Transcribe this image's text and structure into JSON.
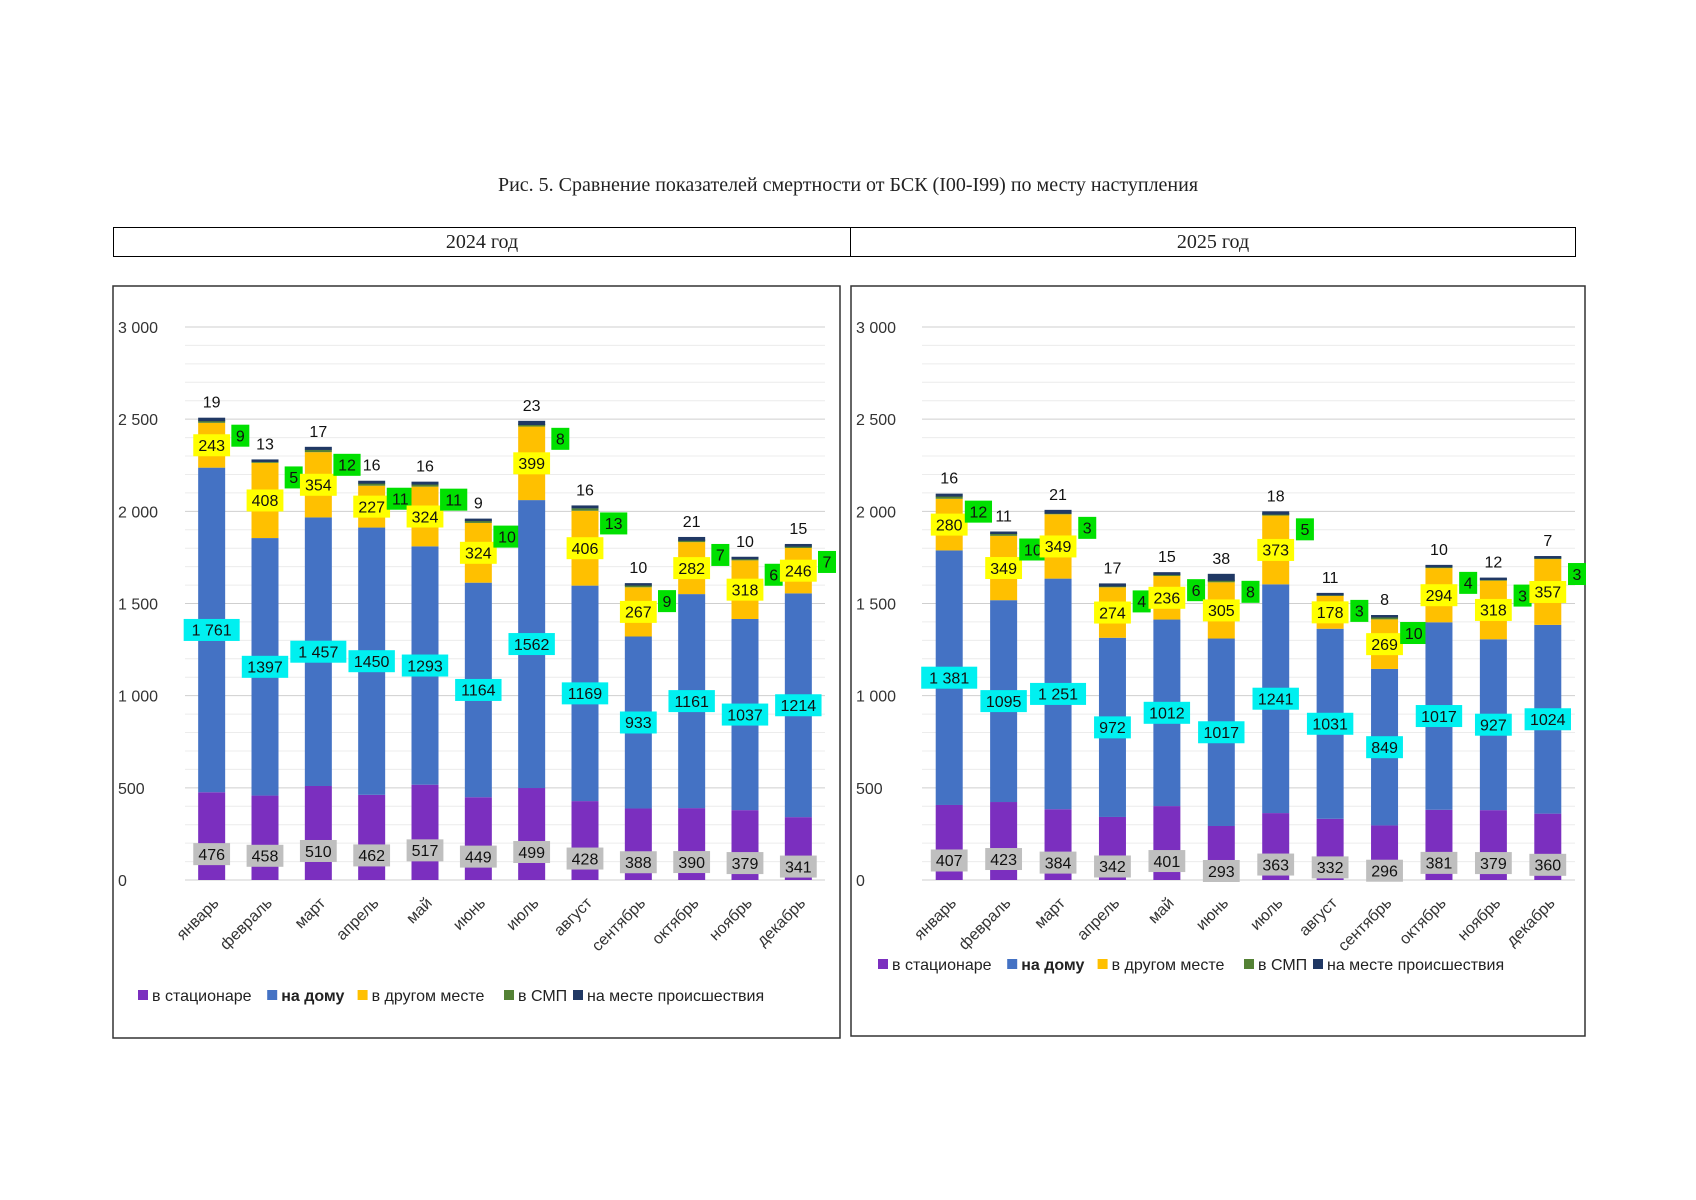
{
  "figure_title": "Рис. 5. Сравнение показателей смертности от БСК (I00-I99) по месту наступления",
  "year_headers": [
    "2024 год",
    "2025 год"
  ],
  "colors": {
    "stationary": "#7B2FBF",
    "home": "#4472C4",
    "other_place": "#FFC000",
    "smp": "#548235",
    "incident_place": "#203864",
    "label_gray": "#BFBFBF",
    "label_cyan": "#00F0F0",
    "label_yellow": "#FFFF00",
    "label_green": "#00E000"
  },
  "chart_data": [
    {
      "type": "bar",
      "stacked": true,
      "year": "2024 год",
      "categories": [
        "январь",
        "февраль",
        "март",
        "апрель",
        "май",
        "июнь",
        "июль",
        "август",
        "сентябрь",
        "октябрь",
        "ноябрь",
        "декабрь"
      ],
      "y_ticks": [
        "0",
        "500",
        "1 000",
        "1 500",
        "2 000",
        "2 500",
        "3 000"
      ],
      "ylim": [
        0,
        3000
      ],
      "grid": true,
      "legend_position": "bottom",
      "series": [
        {
          "name": "в стационаре",
          "key": "stationary",
          "values": [
            476,
            458,
            510,
            462,
            517,
            449,
            499,
            428,
            388,
            390,
            379,
            341
          ],
          "labels": [
            "476",
            "458",
            "510",
            "462",
            "517",
            "449",
            "499",
            "428",
            "388",
            "390",
            "379",
            "341"
          ]
        },
        {
          "name": "на дому",
          "key": "home",
          "bold": true,
          "values": [
            1761,
            1397,
            1457,
            1450,
            1293,
            1164,
            1562,
            1169,
            933,
            1161,
            1037,
            1214
          ],
          "labels": [
            "1 761",
            "1397",
            "1 457",
            "1450",
            "1293",
            "1164",
            "1562",
            "1169",
            "933",
            "1161",
            "1037",
            "1214"
          ]
        },
        {
          "name": "в другом месте",
          "key": "other_place",
          "values": [
            243,
            408,
            354,
            227,
            324,
            324,
            399,
            406,
            267,
            282,
            318,
            246
          ],
          "labels": [
            "243",
            "408",
            "354",
            "227",
            "324",
            "324",
            "399",
            "406",
            "267",
            "282",
            "318",
            "246"
          ]
        },
        {
          "name": "в СМП",
          "key": "smp",
          "values": [
            9,
            5,
            12,
            11,
            11,
            10,
            8,
            13,
            9,
            7,
            6,
            7
          ],
          "labels": [
            "9",
            "5",
            "12",
            "11",
            "11",
            "10",
            "8",
            "13",
            "9",
            "7",
            "6",
            "7"
          ]
        },
        {
          "name": "на месте происшествия",
          "key": "incident_place",
          "values": [
            19,
            13,
            17,
            16,
            16,
            9,
            23,
            16,
            10,
            21,
            10,
            15
          ],
          "labels": [
            "19",
            "13",
            "17",
            "16",
            "16",
            "9",
            "23",
            "16",
            "10",
            "21",
            "10",
            "15"
          ]
        }
      ]
    },
    {
      "type": "bar",
      "stacked": true,
      "year": "2025 год",
      "categories": [
        "январь",
        "февраль",
        "март",
        "апрель",
        "май",
        "июнь",
        "июль",
        "август",
        "сентябрь",
        "октябрь",
        "ноябрь",
        "декабрь"
      ],
      "y_ticks": [
        "0",
        "500",
        "1 000",
        "1 500",
        "2 000",
        "2 500",
        "3 000"
      ],
      "ylim": [
        0,
        3000
      ],
      "grid": true,
      "legend_position": "bottom",
      "series": [
        {
          "name": "в стационаре",
          "key": "stationary",
          "values": [
            407,
            423,
            384,
            342,
            401,
            293,
            363,
            332,
            296,
            381,
            379,
            360
          ],
          "labels": [
            "407",
            "423",
            "384",
            "342",
            "401",
            "293",
            "363",
            "332",
            "296",
            "381",
            "379",
            "360"
          ]
        },
        {
          "name": "на дому",
          "key": "home",
          "bold": true,
          "values": [
            1381,
            1095,
            1251,
            972,
            1012,
            1017,
            1241,
            1031,
            849,
            1017,
            927,
            1024
          ],
          "labels": [
            "1 381",
            "1095",
            "1 251",
            "972",
            "1012",
            "1017",
            "1241",
            "1031",
            "849",
            "1017",
            "927",
            "1024"
          ]
        },
        {
          "name": "в другом месте",
          "key": "other_place",
          "values": [
            280,
            349,
            349,
            274,
            236,
            305,
            373,
            178,
            269,
            294,
            318,
            357
          ],
          "labels": [
            "280",
            "349",
            "349",
            "274",
            "236",
            "305",
            "373",
            "178",
            "269",
            "294",
            "318",
            "357"
          ]
        },
        {
          "name": "в СМП",
          "key": "smp",
          "values": [
            12,
            10,
            3,
            4,
            6,
            8,
            5,
            3,
            10,
            4,
            3,
            3
          ],
          "labels": [
            "12",
            "10",
            "3",
            "4",
            "6",
            "8",
            "5",
            "3",
            "10",
            "4",
            "3",
            "3"
          ]
        },
        {
          "name": "на месте происшествия",
          "key": "incident_place",
          "values": [
            16,
            11,
            21,
            17,
            15,
            38,
            18,
            11,
            8,
            10,
            12,
            7
          ],
          "labels": [
            "16",
            "11",
            "21",
            "17",
            "15",
            "38",
            "18",
            "11",
            "8",
            "10",
            "12",
            "7"
          ]
        }
      ]
    }
  ]
}
